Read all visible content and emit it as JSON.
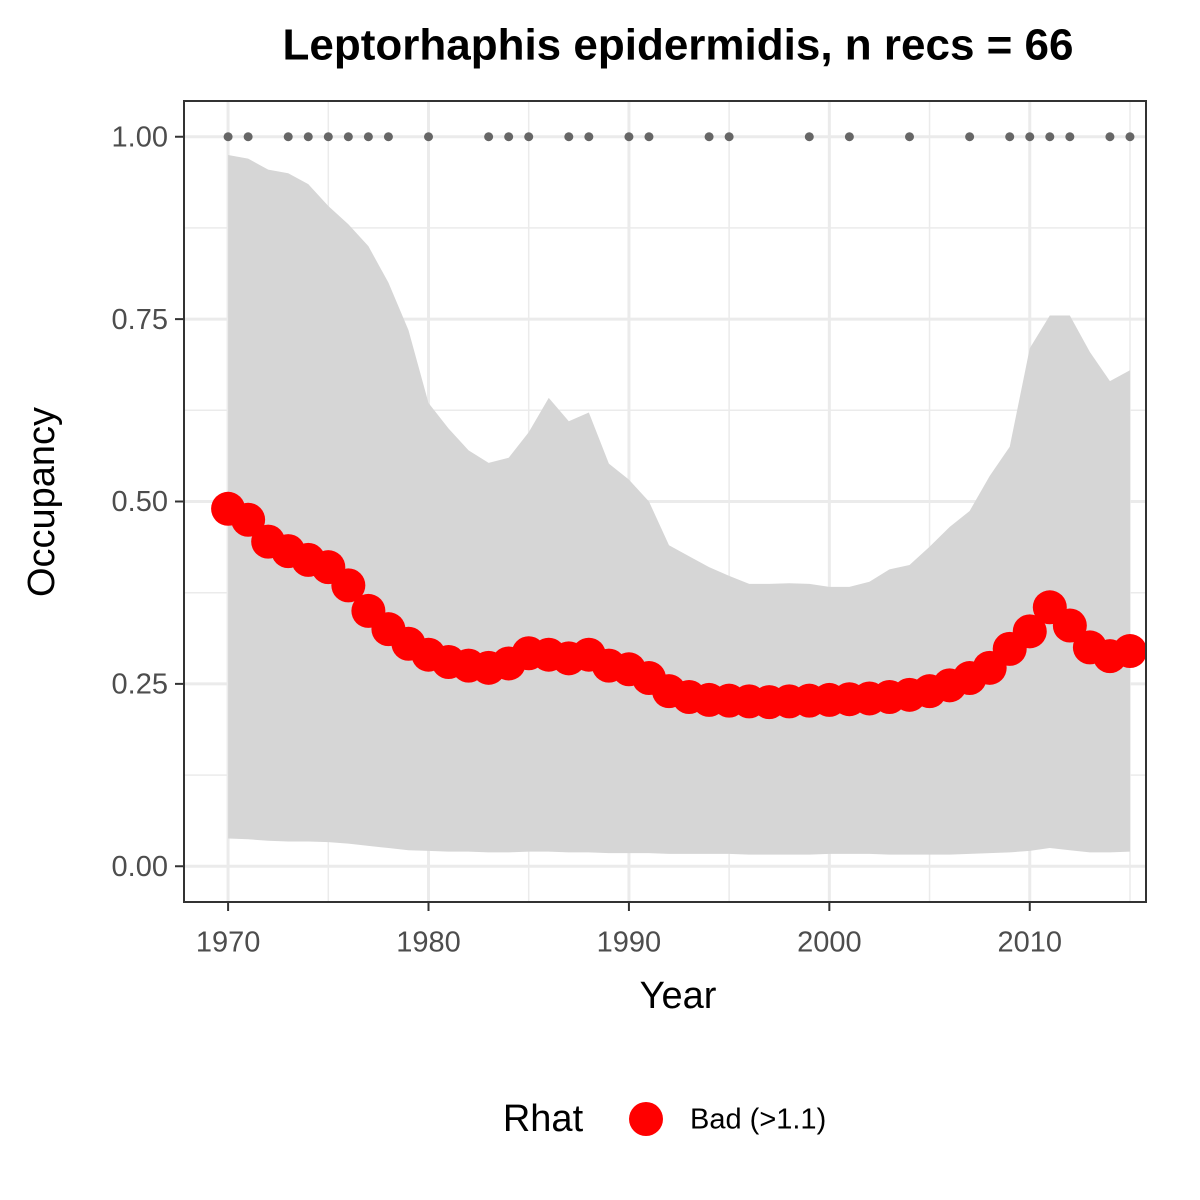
{
  "chart_data": {
    "type": "ribbon-points",
    "title": "Leptorhaphis epidermidis, n recs = 66",
    "x_label": "Year",
    "y_label": "Occupancy",
    "legend_title": "Rhat",
    "legend_position": "bottom",
    "x": [
      1970,
      1971,
      1972,
      1973,
      1974,
      1975,
      1976,
      1977,
      1978,
      1979,
      1980,
      1981,
      1982,
      1983,
      1984,
      1985,
      1986,
      1987,
      1988,
      1989,
      1990,
      1991,
      1992,
      1993,
      1994,
      1995,
      1996,
      1997,
      1998,
      1999,
      2000,
      2001,
      2002,
      2003,
      2004,
      2005,
      2006,
      2007,
      2008,
      2009,
      2010,
      2011,
      2012,
      2013,
      2014,
      2015
    ],
    "series": [
      {
        "name": "Bad (>1.1)",
        "color": "#ff0000",
        "values": [
          0.49,
          0.475,
          0.445,
          0.432,
          0.42,
          0.41,
          0.385,
          0.35,
          0.325,
          0.305,
          0.29,
          0.28,
          0.275,
          0.272,
          0.278,
          0.292,
          0.29,
          0.285,
          0.29,
          0.275,
          0.27,
          0.258,
          0.24,
          0.232,
          0.228,
          0.227,
          0.226,
          0.225,
          0.226,
          0.227,
          0.228,
          0.229,
          0.23,
          0.232,
          0.235,
          0.24,
          0.248,
          0.258,
          0.272,
          0.298,
          0.322,
          0.355,
          0.33,
          0.3,
          0.288,
          0.295
        ]
      }
    ],
    "ribbon": {
      "color": "#d6d6d6",
      "upper": [
        0.975,
        0.97,
        0.955,
        0.95,
        0.935,
        0.905,
        0.88,
        0.85,
        0.8,
        0.735,
        0.635,
        0.6,
        0.57,
        0.553,
        0.56,
        0.595,
        0.642,
        0.61,
        0.622,
        0.552,
        0.53,
        0.5,
        0.44,
        0.425,
        0.41,
        0.398,
        0.387,
        0.387,
        0.388,
        0.387,
        0.383,
        0.383,
        0.39,
        0.407,
        0.413,
        0.438,
        0.465,
        0.487,
        0.535,
        0.575,
        0.71,
        0.755,
        0.755,
        0.705,
        0.665,
        0.68
      ],
      "lower": [
        0.038,
        0.037,
        0.035,
        0.034,
        0.034,
        0.033,
        0.031,
        0.028,
        0.025,
        0.022,
        0.021,
        0.02,
        0.02,
        0.019,
        0.019,
        0.02,
        0.02,
        0.019,
        0.019,
        0.018,
        0.018,
        0.018,
        0.017,
        0.017,
        0.017,
        0.017,
        0.016,
        0.016,
        0.016,
        0.016,
        0.017,
        0.017,
        0.017,
        0.016,
        0.016,
        0.016,
        0.016,
        0.017,
        0.018,
        0.019,
        0.021,
        0.025,
        0.022,
        0.019,
        0.019,
        0.02
      ]
    },
    "records": {
      "color": "#666666",
      "x": [
        1970,
        1971,
        1973,
        1974,
        1975,
        1976,
        1977,
        1978,
        1980,
        1983,
        1984,
        1985,
        1987,
        1988,
        1990,
        1991,
        1994,
        1995,
        1999,
        2001,
        2004,
        2007,
        2009,
        2010,
        2011,
        2012,
        2014,
        2015
      ],
      "values": [
        1,
        1,
        1,
        1,
        1,
        1,
        1,
        1,
        1,
        1,
        1,
        1,
        1,
        1,
        1,
        1,
        1,
        1,
        1,
        1,
        1,
        1,
        1,
        1,
        1,
        1,
        1,
        1
      ]
    },
    "xlim": [
      1967.8,
      2015.8
    ],
    "ylim": [
      -0.049,
      1.049
    ],
    "xticks": [
      1970,
      1980,
      1990,
      2000,
      2010
    ],
    "yticks": [
      {
        "value": 0,
        "label": "0.00"
      },
      {
        "value": 0.25,
        "label": "0.25"
      },
      {
        "value": 0.5,
        "label": "0.50"
      },
      {
        "value": 0.75,
        "label": "0.75"
      },
      {
        "value": 1,
        "label": "1.00"
      }
    ],
    "minor_xticks": [
      1975,
      1985,
      1995,
      2005,
      2015
    ],
    "minor_yticks": [
      0.125,
      0.375,
      0.625,
      0.875
    ],
    "grid": true
  }
}
